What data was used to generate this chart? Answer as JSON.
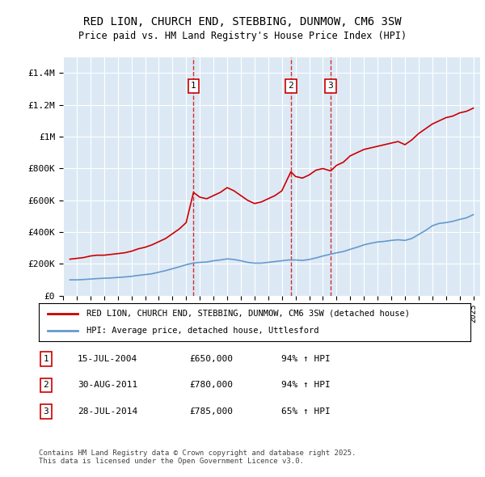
{
  "title": "RED LION, CHURCH END, STEBBING, DUNMOW, CM6 3SW",
  "subtitle": "Price paid vs. HM Land Registry's House Price Index (HPI)",
  "background_color": "#dce9f5",
  "plot_bg_color": "#dce9f5",
  "red_line_color": "#cc0000",
  "blue_line_color": "#6699cc",
  "ylim": [
    0,
    1500000
  ],
  "yticks": [
    0,
    200000,
    400000,
    600000,
    800000,
    1000000,
    1200000,
    1400000
  ],
  "ytick_labels": [
    "£0",
    "£200K",
    "£400K",
    "£600K",
    "£800K",
    "£1M",
    "£1.2M",
    "£1.4M"
  ],
  "footer_text": "Contains HM Land Registry data © Crown copyright and database right 2025.\nThis data is licensed under the Open Government Licence v3.0.",
  "legend_red": "RED LION, CHURCH END, STEBBING, DUNMOW, CM6 3SW (detached house)",
  "legend_blue": "HPI: Average price, detached house, Uttlesford",
  "sale_labels": [
    "1",
    "2",
    "3"
  ],
  "sale_dates": [
    "15-JUL-2004",
    "30-AUG-2011",
    "28-JUL-2014"
  ],
  "sale_prices": [
    650000,
    780000,
    785000
  ],
  "sale_hpi": [
    "94% ↑ HPI",
    "94% ↑ HPI",
    "65% ↑ HPI"
  ],
  "sale_date_nums": [
    2004.54,
    2011.66,
    2014.57
  ],
  "red_x": [
    1995.5,
    1996.0,
    1996.5,
    1997.0,
    1997.5,
    1998.0,
    1998.5,
    1999.0,
    1999.5,
    2000.0,
    2000.5,
    2001.0,
    2001.5,
    2002.0,
    2002.5,
    2003.0,
    2003.5,
    2004.0,
    2004.54,
    2005.0,
    2005.5,
    2006.0,
    2006.5,
    2007.0,
    2007.5,
    2008.0,
    2008.5,
    2009.0,
    2009.5,
    2010.0,
    2010.5,
    2011.0,
    2011.66,
    2012.0,
    2012.5,
    2013.0,
    2013.5,
    2014.0,
    2014.57,
    2015.0,
    2015.5,
    2016.0,
    2016.5,
    2017.0,
    2017.5,
    2018.0,
    2018.5,
    2019.0,
    2019.5,
    2020.0,
    2020.5,
    2021.0,
    2021.5,
    2022.0,
    2022.5,
    2023.0,
    2023.5,
    2024.0,
    2024.5,
    2025.0
  ],
  "red_y": [
    230000,
    235000,
    240000,
    250000,
    255000,
    255000,
    260000,
    265000,
    270000,
    280000,
    295000,
    305000,
    320000,
    340000,
    360000,
    390000,
    420000,
    460000,
    650000,
    620000,
    610000,
    630000,
    650000,
    680000,
    660000,
    630000,
    600000,
    580000,
    590000,
    610000,
    630000,
    660000,
    780000,
    750000,
    740000,
    760000,
    790000,
    800000,
    785000,
    820000,
    840000,
    880000,
    900000,
    920000,
    930000,
    940000,
    950000,
    960000,
    970000,
    950000,
    980000,
    1020000,
    1050000,
    1080000,
    1100000,
    1120000,
    1130000,
    1150000,
    1160000,
    1180000
  ],
  "blue_x": [
    1995.5,
    1996.0,
    1996.5,
    1997.0,
    1997.5,
    1998.0,
    1998.5,
    1999.0,
    1999.5,
    2000.0,
    2000.5,
    2001.0,
    2001.5,
    2002.0,
    2002.5,
    2003.0,
    2003.5,
    2004.0,
    2004.5,
    2005.0,
    2005.5,
    2006.0,
    2006.5,
    2007.0,
    2007.5,
    2008.0,
    2008.5,
    2009.0,
    2009.5,
    2010.0,
    2010.5,
    2011.0,
    2011.5,
    2012.0,
    2012.5,
    2013.0,
    2013.5,
    2014.0,
    2014.5,
    2015.0,
    2015.5,
    2016.0,
    2016.5,
    2017.0,
    2017.5,
    2018.0,
    2018.5,
    2019.0,
    2019.5,
    2020.0,
    2020.5,
    2021.0,
    2021.5,
    2022.0,
    2022.5,
    2023.0,
    2023.5,
    2024.0,
    2024.5,
    2025.0
  ],
  "blue_y": [
    100000,
    100000,
    102000,
    105000,
    108000,
    110000,
    112000,
    115000,
    118000,
    122000,
    128000,
    133000,
    138000,
    148000,
    158000,
    170000,
    182000,
    195000,
    205000,
    210000,
    212000,
    220000,
    225000,
    232000,
    228000,
    220000,
    210000,
    205000,
    205000,
    210000,
    215000,
    220000,
    225000,
    225000,
    222000,
    228000,
    238000,
    250000,
    260000,
    270000,
    278000,
    292000,
    305000,
    320000,
    330000,
    338000,
    342000,
    348000,
    352000,
    348000,
    360000,
    385000,
    410000,
    440000,
    455000,
    460000,
    468000,
    480000,
    490000,
    510000
  ],
  "vline_x": [
    2004.54,
    2011.66,
    2014.57
  ],
  "xmin": 1995.0,
  "xmax": 2025.5
}
